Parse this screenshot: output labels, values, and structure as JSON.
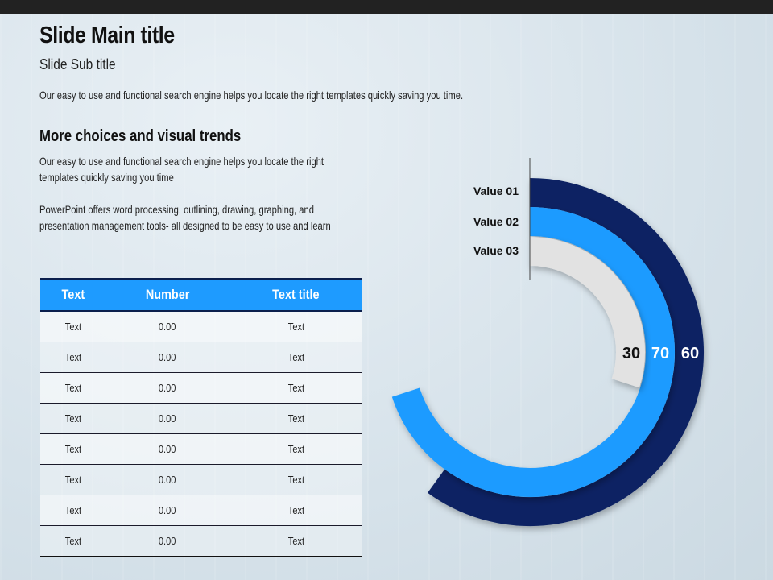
{
  "slide": {
    "title": "Slide Main title",
    "subtitle": "Slide Sub title",
    "description": "Our easy to use and functional search engine helps you locate the right templates quickly saving you time."
  },
  "section": {
    "heading": "More choices and visual trends",
    "paragraph1": "Our easy to use and functional search engine helps you locate the right templates quickly saving you time",
    "paragraph2": "PowerPoint offers word processing, outlining, drawing, graphing, and presentation management tools- all designed to be easy to use and learn"
  },
  "table": {
    "headers": [
      "Text",
      "Number",
      "Text title"
    ],
    "rows": [
      [
        "Text",
        "0.00",
        "Text"
      ],
      [
        "Text",
        "0.00",
        "Text"
      ],
      [
        "Text",
        "0.00",
        "Text"
      ],
      [
        "Text",
        "0.00",
        "Text"
      ],
      [
        "Text",
        "0.00",
        "Text"
      ],
      [
        "Text",
        "0.00",
        "Text"
      ],
      [
        "Text",
        "0.00",
        "Text"
      ],
      [
        "Text",
        "0.00",
        "Text"
      ]
    ]
  },
  "chart_data": {
    "type": "radial-bar",
    "title": "",
    "categories": [
      "Value 01",
      "Value 02",
      "Value 03"
    ],
    "values": [
      60,
      70,
      30
    ],
    "value_labels": [
      "60",
      "70",
      "30"
    ],
    "max": 100,
    "colors": [
      "#0b2463",
      "#1e9bff",
      "#e2e2e2"
    ],
    "legend": "top-left labels"
  }
}
